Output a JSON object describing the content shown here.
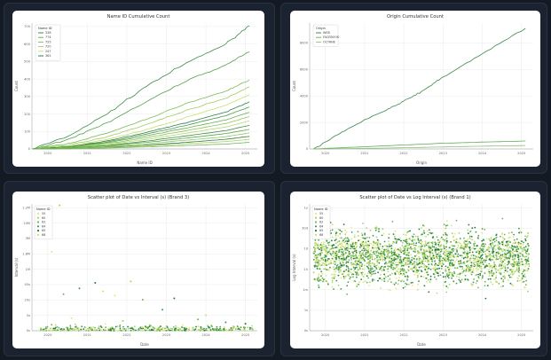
{
  "charts": [
    {
      "title": "Name ID Cumulative Count",
      "xlabel": "Name ID",
      "ylabel": "Count",
      "x_ticks": [
        "2020",
        "2021",
        "2022",
        "2023",
        "2024",
        "2025"
      ],
      "y_ticks": [
        "0",
        "100",
        "200",
        "300",
        "400",
        "500",
        "600",
        "700"
      ],
      "legend_title": "Name ID",
      "legend_items": [
        "338",
        "774",
        "725",
        "720",
        "247",
        "362"
      ]
    },
    {
      "title": "Origin Cumulative Count",
      "xlabel": "Origin",
      "ylabel": "Count",
      "x_ticks": [
        "2020",
        "2021",
        "2022",
        "2023",
        "2024",
        "2025"
      ],
      "y_ticks": [
        "0",
        "2000",
        "4000",
        "6000",
        "8000"
      ],
      "legend_title": "Origin",
      "legend_items": [
        "WEB",
        "FACEBOOK",
        "OCTANE"
      ]
    },
    {
      "title": "Scatter plot of Date vs Interval (s) (Brand 3)",
      "xlabel": "Date",
      "ylabel": "Interval (s)",
      "x_ticks": [
        "2020",
        "2021",
        "2022",
        "2023",
        "2024",
        "2025"
      ],
      "y_ticks": [
        "0s",
        "5s",
        "20s",
        "45s",
        "1M",
        "1.8M",
        "3M",
        "10M",
        "1.2M"
      ],
      "legend_title": "Name ID",
      "legend_items": [
        "55",
        "60",
        "62",
        "64",
        "65",
        "68"
      ]
    },
    {
      "title": "Scatter plot of Date vs Log Interval (s) (Brand 1)",
      "xlabel": "Date",
      "ylabel": "Log Interval (s)",
      "x_ticks": [
        "2020",
        "2021",
        "2022",
        "2023",
        "2024",
        "2025"
      ],
      "y_ticks": [
        "0s",
        "1s",
        "1m",
        "1h",
        "1d",
        "30d",
        "1y"
      ],
      "legend_title": "Name ID",
      "legend_items": [
        "55",
        "60",
        "62",
        "64",
        "65",
        "68"
      ]
    }
  ],
  "chart_data": [
    {
      "type": "line",
      "title": "Name ID Cumulative Count",
      "xlabel": "Name ID",
      "ylabel": "Count",
      "xlim": [
        2019.6,
        2025.3
      ],
      "ylim": [
        0,
        720
      ],
      "x_ticks": [
        2020,
        2021,
        2022,
        2023,
        2024,
        2025
      ],
      "y_ticks": [
        0,
        100,
        200,
        300,
        400,
        500,
        600,
        700
      ],
      "grid": true,
      "legend_placement": "top-left",
      "series": [
        {
          "name": "338",
          "color": "#3a8f4a",
          "x": [
            2019.6,
            2020.5,
            2021.5,
            2022.5,
            2023.5,
            2024.5,
            2025.1
          ],
          "y": [
            0,
            70,
            200,
            360,
            490,
            600,
            705
          ]
        },
        {
          "name": "774",
          "color": "#55a24b",
          "x": [
            2019.6,
            2020.5,
            2021.5,
            2022.5,
            2023.5,
            2024.5,
            2025.1
          ],
          "y": [
            0,
            50,
            150,
            270,
            390,
            480,
            555
          ]
        },
        {
          "name": "725",
          "color": "#7bbb55",
          "x": [
            2019.6,
            2020.5,
            2021.5,
            2022.5,
            2023.5,
            2024.5,
            2025.1
          ],
          "y": [
            0,
            30,
            90,
            170,
            260,
            330,
            395
          ]
        },
        {
          "name": "720",
          "color": "#9fcc63",
          "x": [
            2019.6,
            2020.5,
            2021.5,
            2022.5,
            2023.5,
            2024.5,
            2025.1
          ],
          "y": [
            0,
            20,
            70,
            140,
            220,
            290,
            355
          ]
        },
        {
          "name": "247",
          "color": "#c8df6f",
          "x": [
            2019.6,
            2020.5,
            2021.5,
            2022.5,
            2023.5,
            2024.5,
            2025.1
          ],
          "y": [
            0,
            15,
            55,
            110,
            180,
            250,
            310
          ]
        },
        {
          "name": "362",
          "color": "#2f7f45",
          "x": [
            2019.6,
            2020.5,
            2021.5,
            2022.5,
            2023.5,
            2024.5,
            2025.1
          ],
          "y": [
            0,
            12,
            45,
            95,
            150,
            210,
            270
          ]
        },
        {
          "color": "#4a9a4c",
          "x": [
            2019.6,
            2020.5,
            2021.5,
            2022.5,
            2023.5,
            2024.5,
            2025.1
          ],
          "y": [
            0,
            10,
            40,
            85,
            135,
            190,
            240
          ]
        },
        {
          "color": "#6aad52",
          "x": [
            2019.6,
            2020.5,
            2021.5,
            2022.5,
            2023.5,
            2024.5,
            2025.1
          ],
          "y": [
            0,
            8,
            35,
            75,
            120,
            165,
            210
          ]
        },
        {
          "color": "#8ac45e",
          "x": [
            2019.6,
            2020.5,
            2021.5,
            2022.5,
            2023.5,
            2024.5,
            2025.1
          ],
          "y": [
            0,
            7,
            30,
            65,
            105,
            145,
            185
          ]
        },
        {
          "color": "#b5d868",
          "x": [
            2019.6,
            2020.5,
            2021.5,
            2022.5,
            2023.5,
            2024.5,
            2025.1
          ],
          "y": [
            0,
            6,
            25,
            55,
            90,
            125,
            160
          ]
        },
        {
          "color": "#3f8c48",
          "x": [
            2019.6,
            2020.5,
            2021.5,
            2022.5,
            2023.5,
            2024.5,
            2025.1
          ],
          "y": [
            0,
            5,
            20,
            45,
            75,
            105,
            135
          ]
        },
        {
          "color": "#5fa84f",
          "x": [
            2019.6,
            2020.5,
            2021.5,
            2022.5,
            2023.5,
            2024.5,
            2025.1
          ],
          "y": [
            0,
            4,
            18,
            38,
            62,
            88,
            112
          ]
        },
        {
          "color": "#92c861",
          "x": [
            2019.6,
            2020.5,
            2021.5,
            2022.5,
            2023.5,
            2024.5,
            2025.1
          ],
          "y": [
            0,
            3,
            14,
            30,
            50,
            70,
            92
          ]
        },
        {
          "color": "#2c7a42",
          "x": [
            2019.6,
            2020.5,
            2021.5,
            2022.5,
            2023.5,
            2024.5,
            2025.1
          ],
          "y": [
            0,
            2,
            10,
            22,
            38,
            55,
            72
          ]
        },
        {
          "color": "#a8d265",
          "x": [
            2019.6,
            2020.5,
            2021.5,
            2022.5,
            2023.5,
            2024.5,
            2025.1
          ],
          "y": [
            0,
            2,
            8,
            18,
            30,
            42,
            55
          ]
        },
        {
          "color": "#71b357",
          "x": [
            2019.6,
            2020.5,
            2021.5,
            2022.5,
            2023.5,
            2024.5,
            2025.1
          ],
          "y": [
            0,
            1,
            5,
            12,
            20,
            28,
            38
          ]
        }
      ]
    },
    {
      "type": "line",
      "title": "Origin Cumulative Count",
      "xlabel": "Origin",
      "ylabel": "Count",
      "xlim": [
        2019.6,
        2025.3
      ],
      "ylim": [
        0,
        9500
      ],
      "x_ticks": [
        2020,
        2021,
        2022,
        2023,
        2024,
        2025
      ],
      "y_ticks": [
        0,
        2000,
        4000,
        6000,
        8000
      ],
      "grid": true,
      "legend_placement": "top-left",
      "series": [
        {
          "name": "WEB",
          "color": "#3d8b4d",
          "x": [
            2019.7,
            2020.5,
            2021.5,
            2022.0,
            2022.5,
            2023.0,
            2024.0,
            2025.1
          ],
          "y": [
            0,
            1400,
            2900,
            3600,
            4400,
            5400,
            7200,
            9100
          ]
        },
        {
          "name": "FACEBOOK",
          "color": "#64a85a",
          "x": [
            2019.7,
            2021.0,
            2022.0,
            2023.0,
            2024.0,
            2025.1
          ],
          "y": [
            0,
            170,
            300,
            430,
            520,
            600
          ]
        },
        {
          "name": "OCTANE",
          "color": "#8cc07a",
          "x": [
            2019.7,
            2021.0,
            2022.0,
            2023.0,
            2024.0,
            2025.1
          ],
          "y": [
            0,
            40,
            90,
            150,
            210,
            260
          ]
        }
      ]
    },
    {
      "type": "scatter",
      "title": "Scatter plot of Date vs Interval (s) (Brand 3)",
      "xlabel": "Date",
      "ylabel": "Interval (s)",
      "xlim": [
        2019.6,
        2025.3
      ],
      "ylim": [
        0,
        9
      ],
      "x_ticks": [
        2020,
        2021,
        2022,
        2023,
        2024,
        2025
      ],
      "y_tick_labels": [
        "0s",
        "5s",
        "20s",
        "45s",
        "1M",
        "1.8M",
        "3M",
        "10M",
        "1.2M"
      ],
      "grid": true,
      "legend_placement": "top-left",
      "series_names": [
        "55",
        "60",
        "62",
        "64",
        "65",
        "68"
      ],
      "colors": [
        "#e3e87a",
        "#a6d16a",
        "#6db35a",
        "#3e9a4e",
        "#1f7b3f",
        "#c7df72"
      ],
      "points": [
        [
          2020.1,
          5.6,
          0
        ],
        [
          2020.3,
          8.9,
          1
        ],
        [
          2020.4,
          2.6,
          2
        ],
        [
          2020.8,
          3.0,
          3
        ],
        [
          2021.2,
          3.4,
          4
        ],
        [
          2021.4,
          2.8,
          5
        ],
        [
          2021.7,
          2.5,
          0
        ],
        [
          2022.1,
          3.5,
          1
        ],
        [
          2022.4,
          2.2,
          2
        ],
        [
          2022.9,
          1.5,
          3
        ],
        [
          2023.2,
          2.3,
          4
        ],
        [
          2024.0,
          1.1,
          5
        ],
        [
          2020.6,
          0.9,
          0
        ],
        [
          2021.9,
          0.7,
          1
        ],
        [
          2023.8,
          0.8,
          2
        ],
        [
          2024.5,
          0.6,
          3
        ],
        [
          2025.0,
          0.5,
          4
        ],
        [
          2020.2,
          0.4,
          5
        ],
        [
          2021.3,
          0.3,
          1
        ],
        [
          2022.6,
          0.35,
          2
        ]
      ],
      "dense_band": {
        "x_range": [
          2019.8,
          2025.2
        ],
        "y_range": [
          0,
          0.55
        ]
      }
    },
    {
      "type": "scatter",
      "title": "Scatter plot of Date vs Log Interval (s) (Brand 1)",
      "xlabel": "Date",
      "ylabel": "Log Interval (s)",
      "xlim": [
        2019.6,
        2025.3
      ],
      "ylim": [
        0,
        6.2
      ],
      "x_ticks": [
        2020,
        2021,
        2022,
        2023,
        2024,
        2025
      ],
      "y_tick_labels": [
        "0s",
        "1s",
        "1m",
        "1h",
        "1d",
        "30d",
        "1y"
      ],
      "grid": true,
      "legend_placement": "top-left",
      "series_names": [
        "55",
        "60",
        "62",
        "64",
        "65",
        "68"
      ],
      "colors": [
        "#e3e87a",
        "#a6d16a",
        "#6db35a",
        "#3e9a4e",
        "#1f7b3f",
        "#c7df72"
      ],
      "dense_band": {
        "x_range": [
          2019.7,
          2025.2
        ],
        "y_range": [
          0.3,
          6.0
        ],
        "center": 3.6
      }
    }
  ]
}
